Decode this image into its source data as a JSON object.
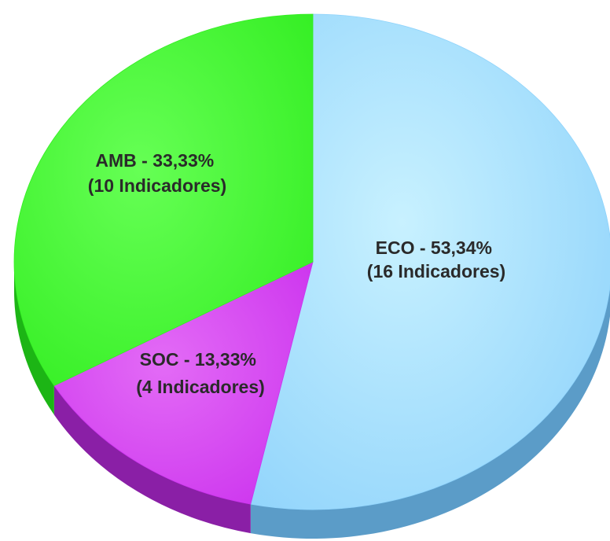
{
  "chart_data": {
    "type": "pie",
    "title": "",
    "categories": [
      "ECO",
      "SOC",
      "AMB"
    ],
    "values": [
      53.34,
      13.33,
      33.33
    ],
    "indicators": [
      16,
      4,
      10
    ],
    "labels": [
      {
        "line1": "ECO - 53,34%",
        "line2": "(16 Indicadores)"
      },
      {
        "line1": "SOC - 13,33%",
        "line2": "(4 Indicadores)"
      },
      {
        "line1": "AMB - 33,33%",
        "line2": "(10 Indicadores)"
      }
    ],
    "colors": [
      "#8fd3fb",
      "#cc33ee",
      "#33ee22"
    ],
    "side_colors": [
      "#5b9cc8",
      "#8a1fa6",
      "#1cb515"
    ],
    "start_angle_deg": -90,
    "direction": "clockwise",
    "style": "3d",
    "legend": "none"
  }
}
